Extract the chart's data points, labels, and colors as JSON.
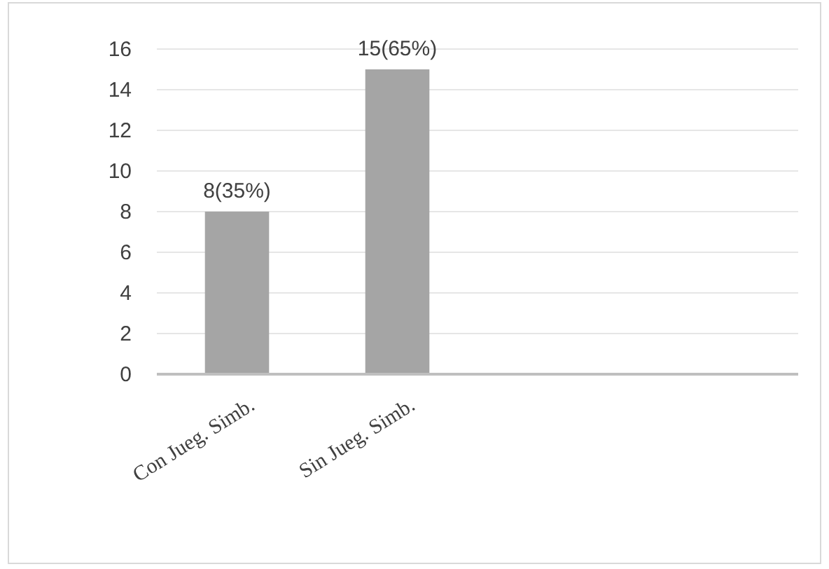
{
  "chart_data": {
    "type": "bar",
    "categories": [
      "Con Jueg. Simb.",
      "Sin Jueg. Simb.",
      null,
      null
    ],
    "values": [
      8,
      15,
      null,
      null
    ],
    "value_labels": [
      "8(35%)",
      "15(65%)",
      null,
      null
    ],
    "color": "#a5a5a5",
    "ylim": [
      0,
      16
    ],
    "yticks": [
      0,
      2,
      4,
      6,
      8,
      10,
      12,
      14,
      16
    ],
    "grid": "y"
  }
}
